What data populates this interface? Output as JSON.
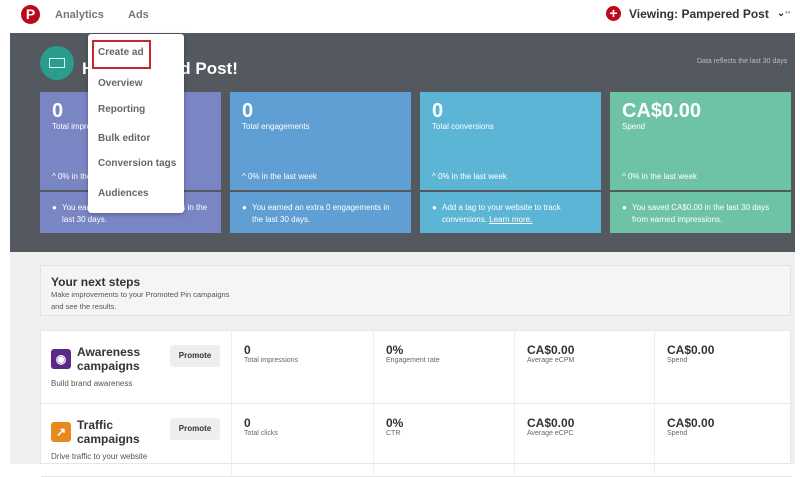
{
  "topbar": {
    "nav": [
      "Analytics",
      "Ads"
    ],
    "viewing": "Viewing: Pampered Post",
    "more": "••"
  },
  "header": {
    "greeting": "Hi, Pampered Post!",
    "reflect": "Data reflects the last 30 days"
  },
  "colors": {
    "brand": "#bd081c",
    "card1": "#7a85c4",
    "card2": "#5f9fd3",
    "card3": "#5db5d6",
    "card4": "#6fc3a5"
  },
  "cards": [
    {
      "value": "0",
      "label": "Total impressions",
      "week": "^ 0% in the last week",
      "tip": "You earned an extra 0 impressions in the last 30 days."
    },
    {
      "value": "0",
      "label": "Total engagements",
      "week": "^ 0% in the last week",
      "tip": "You earned an extra 0 engagements in the last 30 days."
    },
    {
      "value": "0",
      "label": "Total conversions",
      "week": "^ 0% in the last week",
      "tip": "Add a tag to your website to track conversions.",
      "link": "Learn more."
    },
    {
      "value": "CA$0.00",
      "label": "Spend",
      "week": "^ 0% in the last week",
      "tip": "You saved CA$0.00 in the last 30 days from earned impressions."
    }
  ],
  "menu": [
    "Create ad",
    "Overview",
    "Reporting",
    "Bulk editor",
    "Conversion tags",
    "Audiences"
  ],
  "steps": {
    "title": "Your next steps",
    "desc": "Make improvements to your Promoted Pin campaigns and see the results."
  },
  "campaigns": [
    {
      "name": "Awareness campaigns",
      "desc": "Build brand awareness",
      "button": "Promote",
      "metrics": [
        {
          "v": "0",
          "l": "Total impressions"
        },
        {
          "v": "0%",
          "l": "Engagement rate"
        },
        {
          "v": "CA$0.00",
          "l": "Average eCPM"
        },
        {
          "v": "CA$0.00",
          "l": "Spend"
        }
      ]
    },
    {
      "name": "Traffic campaigns",
      "desc": "Drive traffic to your website",
      "button": "Promote",
      "metrics": [
        {
          "v": "0",
          "l": "Total clicks"
        },
        {
          "v": "0%",
          "l": "CTR"
        },
        {
          "v": "CA$0.00",
          "l": "Average eCPC"
        },
        {
          "v": "CA$0.00",
          "l": "Spend"
        }
      ]
    }
  ]
}
